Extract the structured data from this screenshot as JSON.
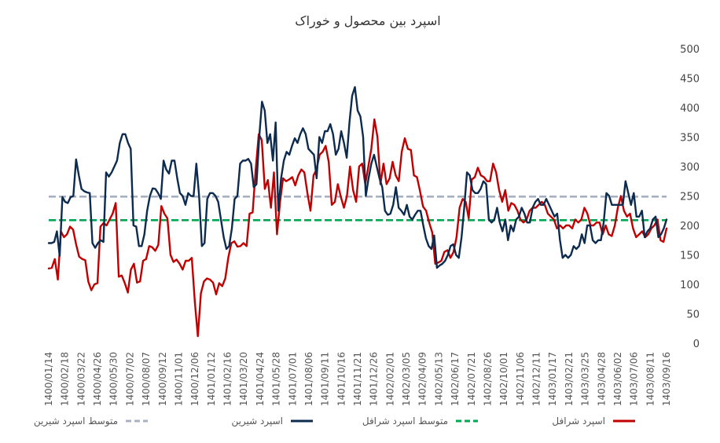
{
  "chart_data": {
    "type": "line",
    "title": "اسپرد بین محصول و خوراک",
    "xlabel": "",
    "ylabel": "",
    "ylim": [
      0,
      500
    ],
    "yticks": [
      0,
      50,
      100,
      150,
      200,
      250,
      300,
      350,
      400,
      450,
      500
    ],
    "y_axis_side": "right",
    "grid": false,
    "legend_position": "bottom",
    "x_tick_labels": [
      "1400/01/14",
      "1400/02/18",
      "1400/03/22",
      "1400/04/26",
      "1400/05/30",
      "1400/07/02",
      "1400/08/07",
      "1400/09/12",
      "1400/11/01",
      "1400/12/06",
      "1401/01/12",
      "1401/02/16",
      "1401/03/20",
      "1401/04/24",
      "1401/05/28",
      "1401/07/01",
      "1401/08/06",
      "1401/09/11",
      "1401/10/16",
      "1401/11/21",
      "1401/12/26",
      "1402/02/01",
      "1402/03/05",
      "1402/04/09",
      "1402/05/13",
      "1402/06/17",
      "1402/07/21",
      "1402/08/26",
      "1402/10/01",
      "1402/11/06",
      "1402/12/11",
      "1403/01/17",
      "1403/02/21",
      "1403/03/25",
      "1403/04/28",
      "1403/06/02",
      "1403/07/06",
      "1403/08/11",
      "1403/09/16"
    ],
    "series": [
      {
        "name": "اسپرد شرافل",
        "color": "#c00000",
        "values": [
          127,
          128,
          143,
          108,
          190,
          180,
          185,
          198,
          193,
          168,
          147,
          143,
          141,
          105,
          90,
          100,
          102,
          198,
          204,
          200,
          210,
          220,
          238,
          113,
          115,
          102,
          86,
          125,
          135,
          103,
          105,
          140,
          143,
          165,
          163,
          157,
          167,
          233,
          220,
          212,
          150,
          138,
          142,
          135,
          125,
          140,
          140,
          145,
          70,
          12,
          85,
          105,
          110,
          108,
          103,
          83,
          102,
          97,
          110,
          145,
          170,
          173,
          164,
          165,
          170,
          165,
          220,
          222,
          295,
          355,
          345,
          262,
          277,
          230,
          290,
          185,
          240,
          280,
          275,
          278,
          282,
          268,
          285,
          295,
          290,
          255,
          225,
          285,
          295,
          320,
          325,
          335,
          308,
          235,
          240,
          270,
          248,
          230,
          250,
          300,
          260,
          240,
          300,
          305,
          270,
          300,
          330,
          380,
          350,
          270,
          305,
          270,
          280,
          308,
          285,
          275,
          325,
          348,
          330,
          328,
          285,
          282,
          258,
          232,
          225,
          205,
          188,
          135,
          137,
          140,
          155,
          158,
          145,
          155,
          180,
          230,
          245,
          240,
          212,
          278,
          282,
          298,
          285,
          282,
          275,
          275,
          305,
          290,
          260,
          240,
          260,
          225,
          238,
          235,
          225,
          210,
          205,
          210,
          225,
          230,
          230,
          235,
          240,
          235,
          220,
          215,
          210,
          195,
          200,
          195,
          200,
          200,
          195,
          210,
          205,
          210,
          230,
          220,
          200,
          200,
          205,
          205,
          185,
          200,
          185,
          182,
          200,
          230,
          250,
          225,
          215,
          220,
          195,
          180,
          185,
          190,
          180,
          185,
          195,
          200,
          210,
          175,
          172,
          195
        ]
      },
      {
        "name": "متوسط اسپرد شرافل",
        "color": "#00a651",
        "dashed": true,
        "values": [
          209,
          209
        ]
      },
      {
        "name": "اسپرد شیرین",
        "color": "#0d2b4e",
        "values": [
          170,
          170,
          172,
          190,
          148,
          248,
          240,
          238,
          248,
          250,
          312,
          285,
          262,
          258,
          256,
          255,
          170,
          162,
          170,
          175,
          172,
          290,
          283,
          290,
          300,
          310,
          340,
          355,
          355,
          340,
          330,
          200,
          198,
          165,
          165,
          185,
          225,
          250,
          263,
          262,
          255,
          245,
          310,
          295,
          288,
          310,
          310,
          280,
          255,
          250,
          235,
          255,
          250,
          250,
          305,
          250,
          165,
          170,
          245,
          255,
          255,
          250,
          240,
          210,
          180,
          160,
          165,
          195,
          245,
          250,
          305,
          310,
          310,
          313,
          305,
          265,
          270,
          350,
          410,
          395,
          340,
          355,
          310,
          375,
          225,
          280,
          310,
          325,
          320,
          335,
          348,
          340,
          355,
          365,
          355,
          330,
          325,
          320,
          280,
          350,
          340,
          360,
          360,
          372,
          355,
          320,
          330,
          360,
          340,
          315,
          375,
          420,
          435,
          395,
          385,
          350,
          250,
          280,
          305,
          320,
          300,
          280,
          265,
          225,
          218,
          220,
          235,
          265,
          230,
          225,
          218,
          235,
          215,
          210,
          218,
          225,
          225,
          200,
          178,
          165,
          160,
          183,
          128,
          132,
          135,
          140,
          150,
          165,
          168,
          150,
          145,
          180,
          230,
          290,
          285,
          260,
          255,
          255,
          262,
          275,
          270,
          210,
          205,
          210,
          230,
          205,
          190,
          210,
          175,
          200,
          190,
          210,
          215,
          230,
          220,
          205,
          205,
          230,
          240,
          245,
          235,
          235,
          245,
          235,
          225,
          215,
          220,
          175,
          145,
          150,
          145,
          150,
          165,
          160,
          165,
          185,
          170,
          200,
          200,
          175,
          170,
          175,
          175,
          205,
          255,
          250,
          235,
          235,
          235,
          235,
          235,
          275,
          255,
          235,
          255,
          215,
          215,
          225,
          180,
          190,
          195,
          210,
          215,
          180,
          185,
          195,
          210
        ]
      },
      {
        "name": "متوسط اسپرد شیرین",
        "color": "#a8b1c4",
        "dashed": true,
        "values": [
          249,
          249
        ]
      }
    ]
  }
}
